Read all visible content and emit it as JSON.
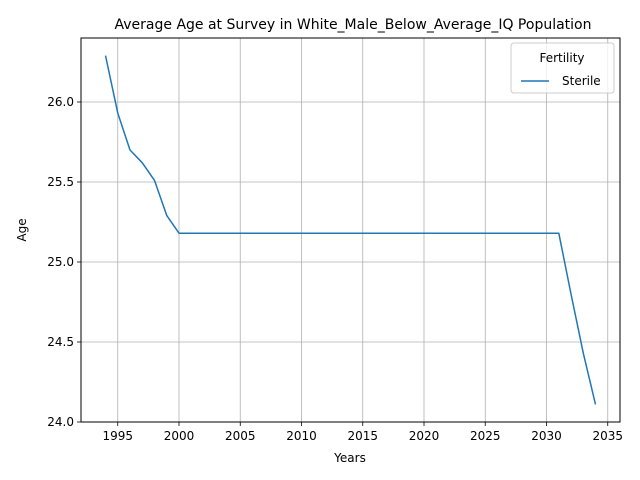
{
  "chart_data": {
    "type": "line",
    "title": "Average Age at Survey in White_Male_Below_Average_IQ Population",
    "xlabel": "Years",
    "ylabel": "Age",
    "xlim": [
      1992,
      2036
    ],
    "ylim": [
      24.0,
      26.4
    ],
    "x_ticks": [
      1995,
      2000,
      2005,
      2010,
      2015,
      2020,
      2025,
      2030,
      2035
    ],
    "y_ticks": [
      24.0,
      24.5,
      25.0,
      25.5,
      26.0
    ],
    "grid": true,
    "legend": {
      "title": "Fertility",
      "position": "top-right"
    },
    "series": [
      {
        "name": "Sterile",
        "color": "#1f77b4",
        "x": [
          1994,
          1995,
          1996,
          1997,
          1998,
          1999,
          2000,
          2001,
          2002,
          2003,
          2004,
          2005,
          2006,
          2007,
          2008,
          2009,
          2010,
          2011,
          2012,
          2013,
          2014,
          2015,
          2016,
          2017,
          2018,
          2019,
          2020,
          2021,
          2022,
          2023,
          2024,
          2025,
          2026,
          2027,
          2028,
          2029,
          2030,
          2031,
          2032,
          2033,
          2034
        ],
        "y": [
          26.29,
          25.93,
          25.7,
          25.62,
          25.51,
          25.29,
          25.18,
          25.18,
          25.18,
          25.18,
          25.18,
          25.18,
          25.18,
          25.18,
          25.18,
          25.18,
          25.18,
          25.18,
          25.18,
          25.18,
          25.18,
          25.18,
          25.18,
          25.18,
          25.18,
          25.18,
          25.18,
          25.18,
          25.18,
          25.18,
          25.18,
          25.18,
          25.18,
          25.18,
          25.18,
          25.18,
          25.18,
          25.18,
          24.8,
          24.43,
          24.11
        ]
      }
    ]
  }
}
